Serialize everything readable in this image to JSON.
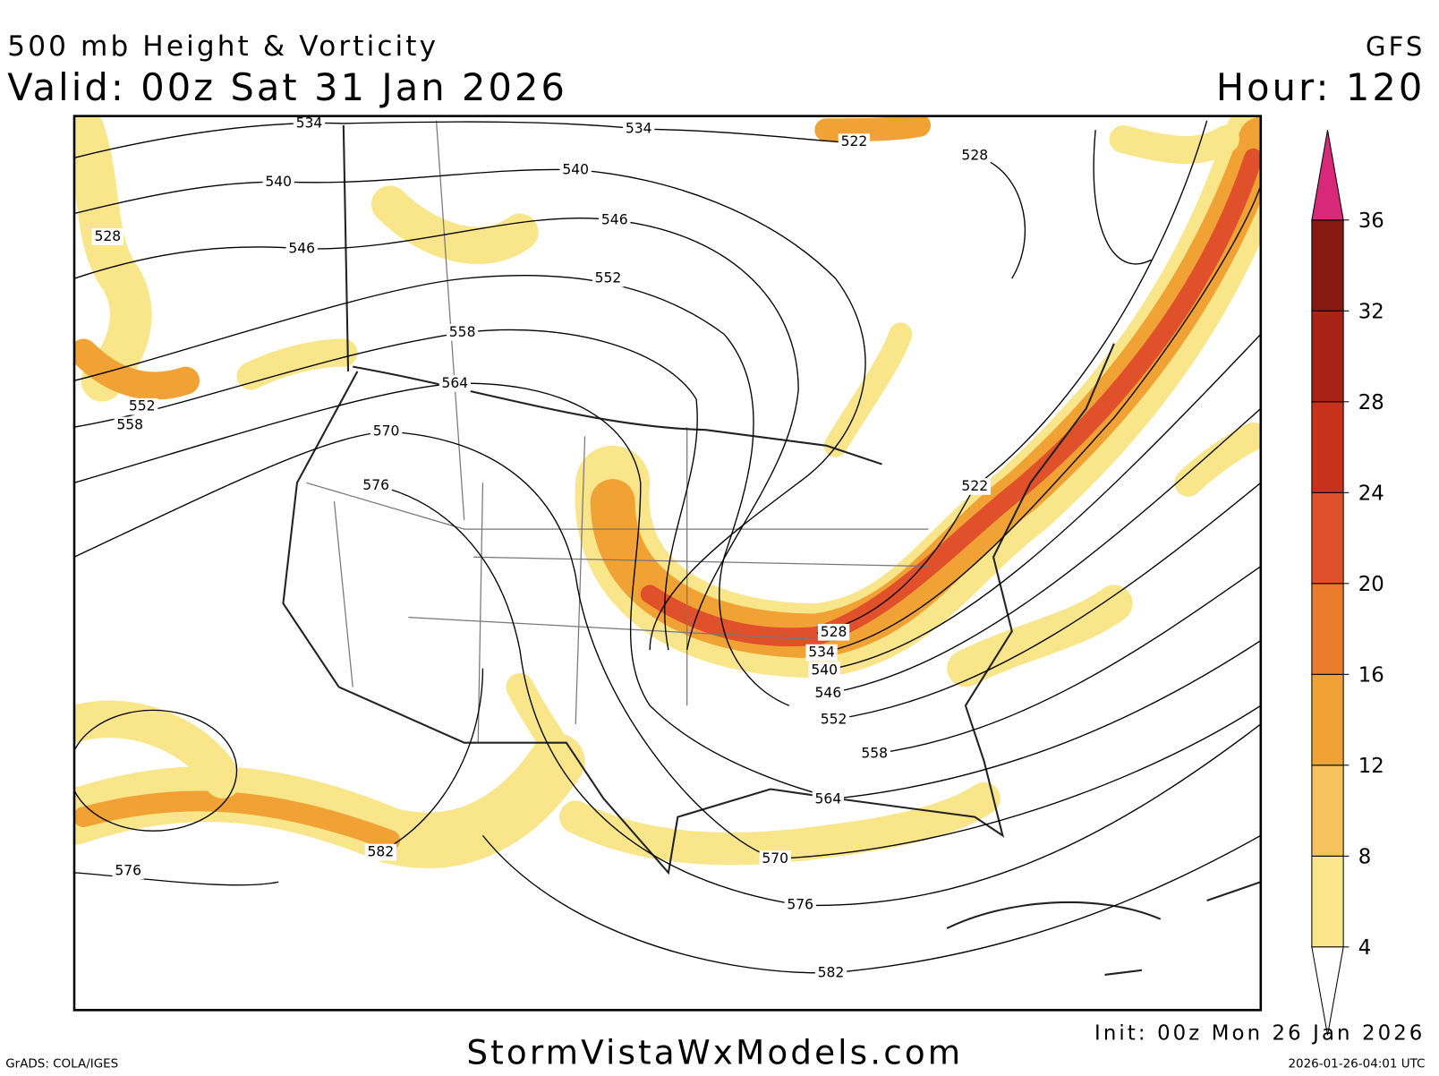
{
  "header": {
    "title": "500 mb Height & Vorticity",
    "valid": "Valid: 00z Sat 31 Jan 2026",
    "model": "GFS",
    "hour": "Hour: 120"
  },
  "colorbar": {
    "ticks": [
      4,
      8,
      12,
      16,
      20,
      24,
      28,
      32,
      36
    ],
    "colors": [
      "#f9e58a",
      "#f5c25e",
      "#f0a234",
      "#ea7a2c",
      "#e0502a",
      "#c8321c",
      "#a82216",
      "#861a10"
    ],
    "over_color": "#d8287a",
    "under_color": "#ffffff"
  },
  "contour_labels": [
    "534",
    "534",
    "522",
    "528",
    "540",
    "540",
    "546",
    "528",
    "546",
    "552",
    "558",
    "564",
    "552",
    "558",
    "570",
    "576",
    "522",
    "528",
    "534",
    "540",
    "546",
    "552",
    "558",
    "564",
    "570",
    "576",
    "582",
    "576",
    "582"
  ],
  "footer": {
    "site": "StormVistaWxModels.com",
    "init": "Init: 00z Mon 26 Jan 2026",
    "credit": "GrADS: COLA/IGES",
    "timestamp": "2026-01-26-04:01 UTC"
  }
}
